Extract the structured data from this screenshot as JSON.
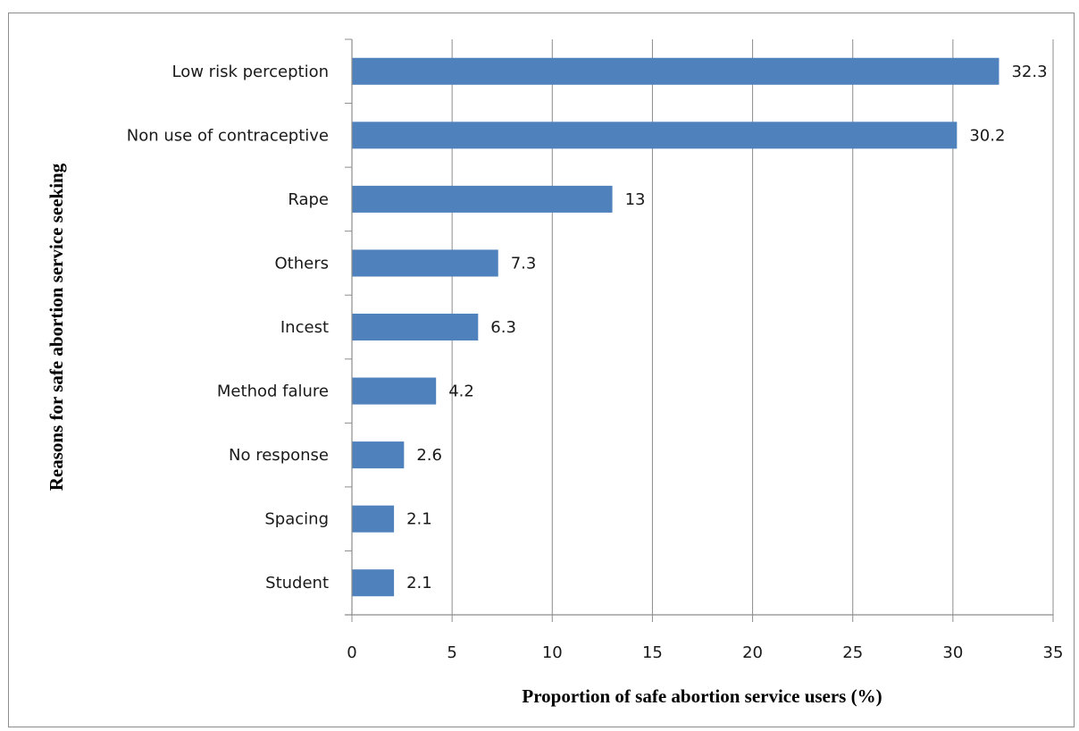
{
  "chart_data": {
    "type": "bar",
    "orientation": "horizontal",
    "categories": [
      "Low risk perception",
      "Non use of contraceptive",
      "Rape",
      "Others",
      "Incest",
      "Method falure",
      "No response",
      "Spacing",
      "Student"
    ],
    "values": [
      32.3,
      30.2,
      13,
      7.3,
      6.3,
      4.2,
      2.6,
      2.1,
      2.1
    ],
    "data_labels": [
      "32.3",
      "30.2",
      "13",
      "7.3",
      "6.3",
      "4.2",
      "2.6",
      "2.1",
      "2.1"
    ],
    "title": "",
    "xlabel": "Proportion of safe abortion service users (%)",
    "ylabel": "Reasons for safe abortion service seeking",
    "xlim": [
      0,
      35
    ],
    "xticks": [
      0,
      5,
      10,
      15,
      20,
      25,
      30,
      35
    ],
    "grid": "vertical",
    "legend": "none",
    "bar_color": "#4f81bd",
    "grid_color": "#8c8c8c"
  }
}
